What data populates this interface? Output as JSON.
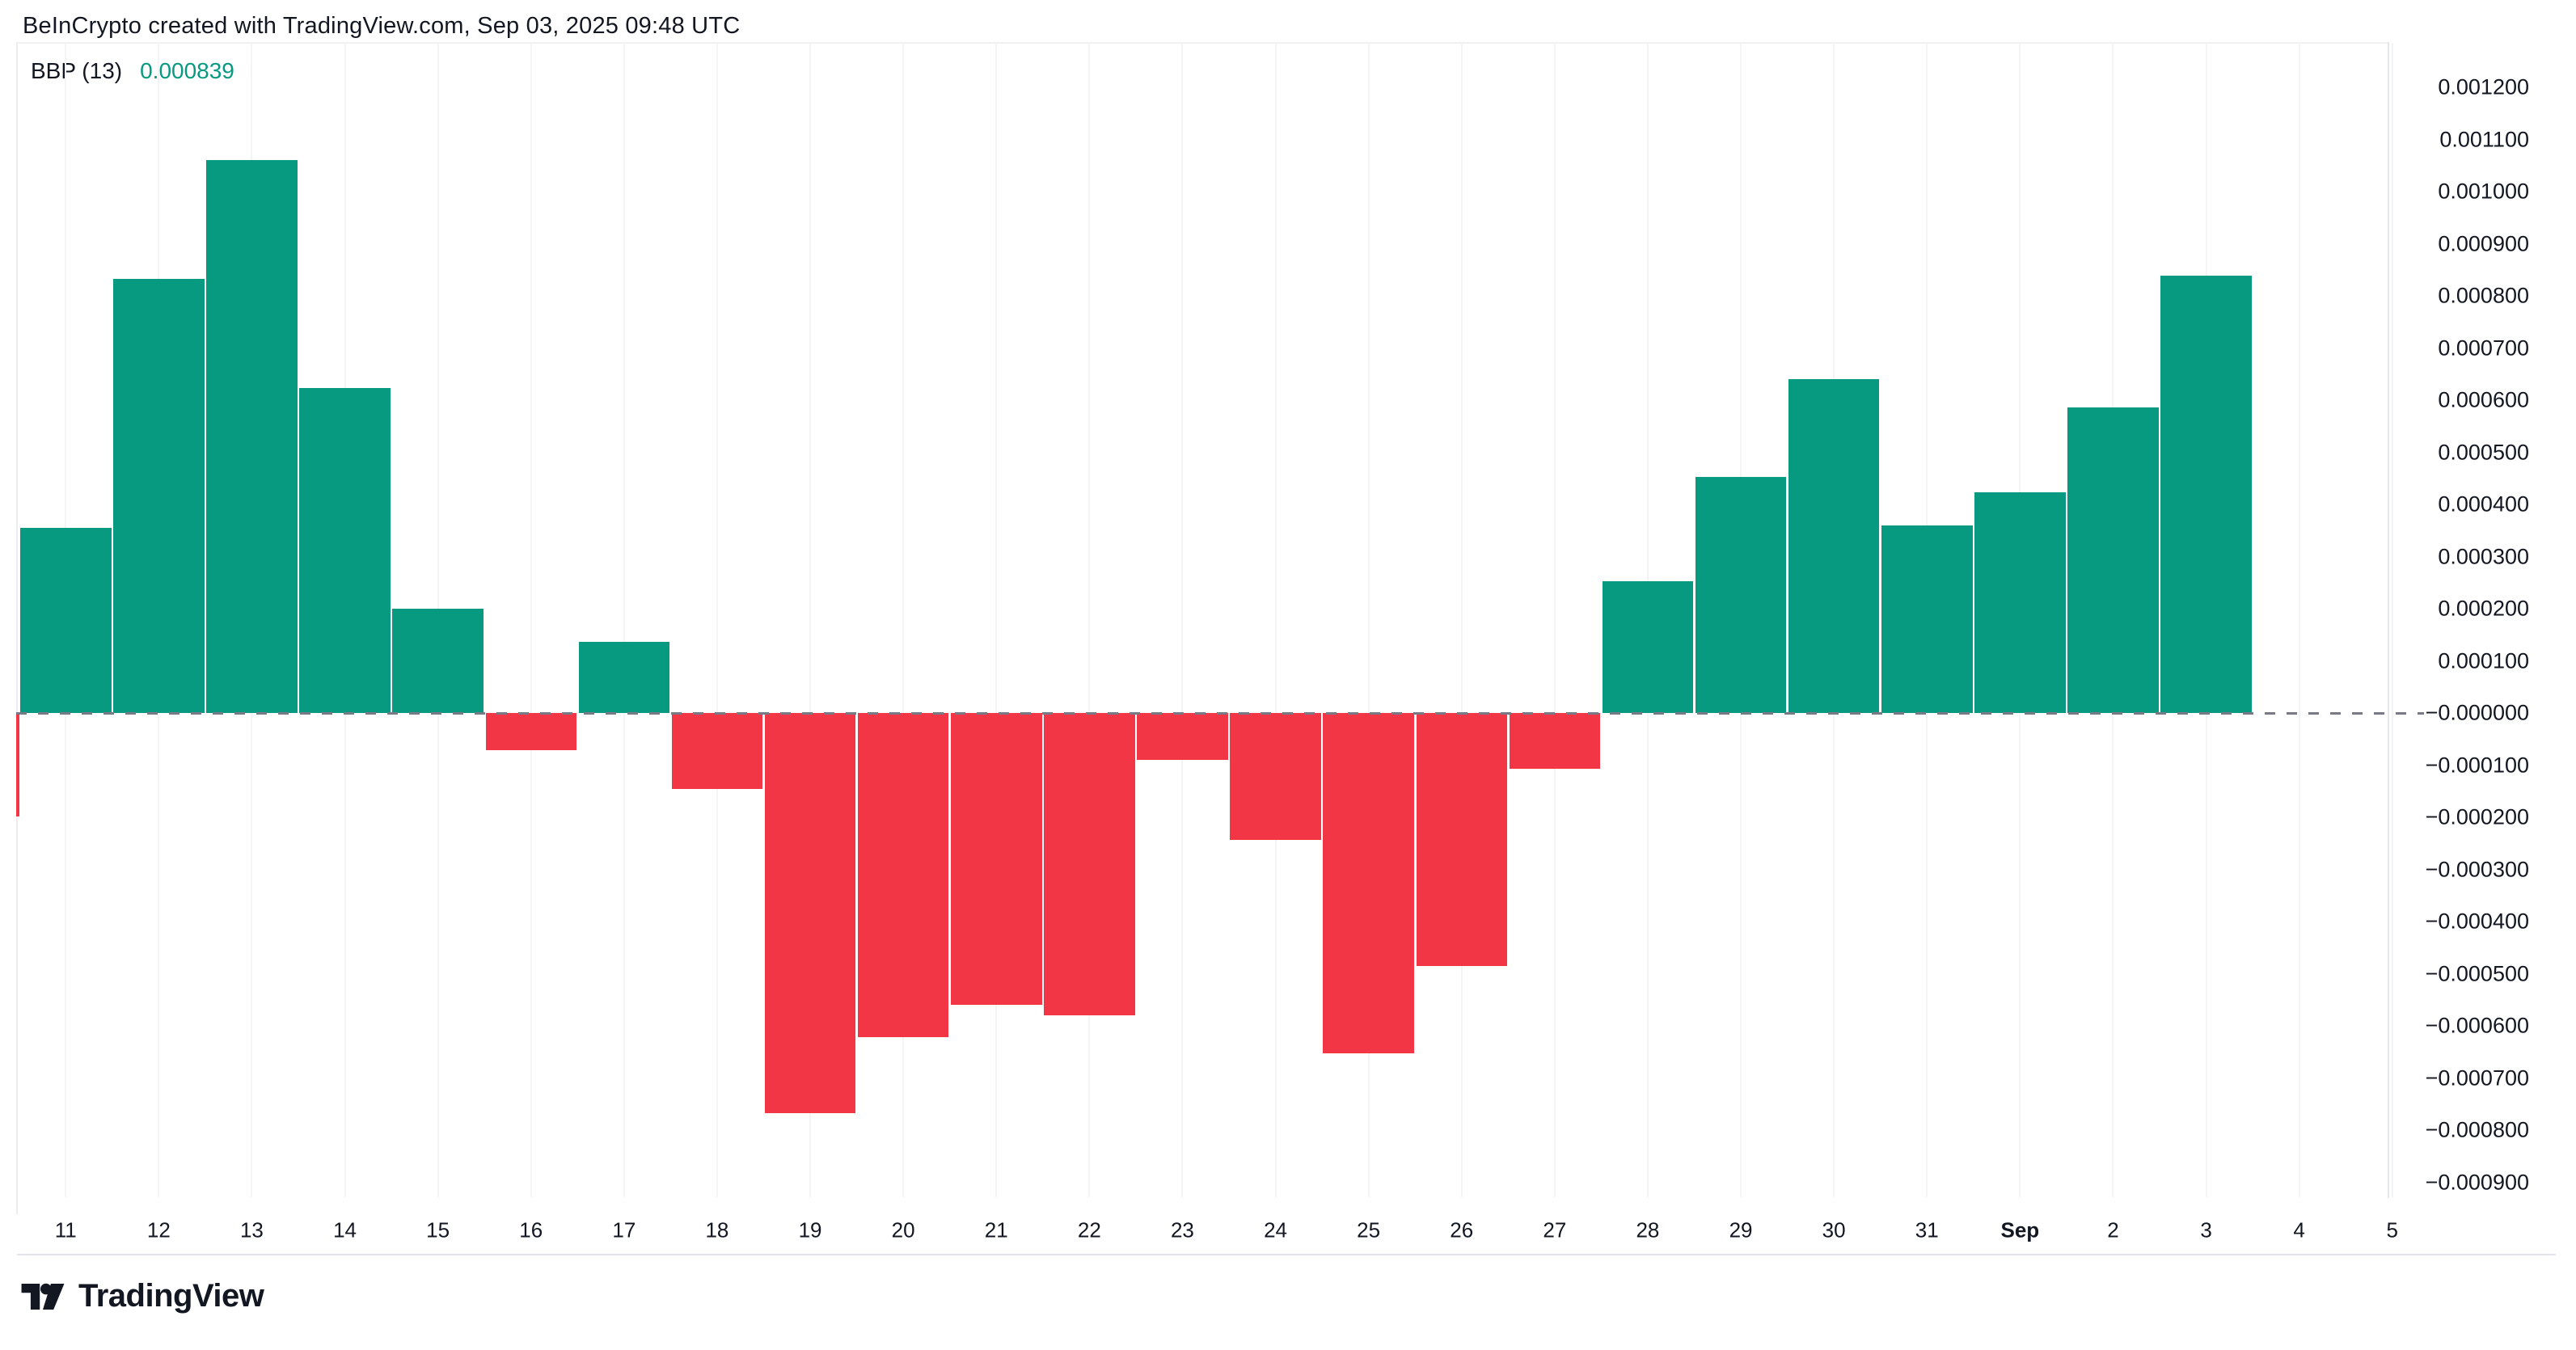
{
  "header": {
    "title": "BeInCrypto created with TradingView.com, Sep 03, 2025 09:48 UTC"
  },
  "legend": {
    "indicator_label": "BBP (13)",
    "indicator_value": "0.000839"
  },
  "footer": {
    "brand": "TradingView"
  },
  "colors": {
    "positive": "#089981",
    "negative": "#F23645",
    "text": "#131722",
    "zero_line": "#787b86",
    "grid": "#f3f4f8",
    "border": "#e6e8ee"
  },
  "chart_data": {
    "type": "bar",
    "title": "BBP (13)",
    "current_value": 0.000839,
    "categories": [
      "11",
      "12",
      "13",
      "14",
      "15",
      "16",
      "17",
      "18",
      "19",
      "20",
      "21",
      "22",
      "23",
      "24",
      "25",
      "26",
      "27",
      "28",
      "29",
      "30",
      "31",
      "Sep",
      "2",
      "3",
      "4",
      "5"
    ],
    "values": [
      0.000355,
      0.000833,
      0.00106,
      0.000623,
      0.0002,
      -7.2e-05,
      0.000136,
      -0.000146,
      -0.000767,
      -0.000622,
      -0.000559,
      -0.00058,
      -9e-05,
      -0.000244,
      -0.000652,
      -0.000486,
      -0.000107,
      0.000252,
      0.000452,
      0.000641,
      0.00036,
      0.000424,
      0.000586,
      0.000839,
      null,
      null
    ],
    "bold_category": "Sep",
    "partial_left_bar_value": -0.000199,
    "y_tick_labels": [
      "0.001200",
      "0.001100",
      "0.001000",
      "0.000900",
      "0.000800",
      "0.000700",
      "0.000600",
      "0.000500",
      "0.000400",
      "0.000300",
      "0.000200",
      "0.000100",
      "−0.000000",
      "−0.000100",
      "−0.000200",
      "−0.000300",
      "−0.000400",
      "−0.000500",
      "−0.000600",
      "−0.000700",
      "−0.000800",
      "−0.000900"
    ],
    "y_tick_values": [
      0.0012,
      0.0011,
      0.001,
      0.0009,
      0.0008,
      0.0007,
      0.0006,
      0.0005,
      0.0004,
      0.0003,
      0.0002,
      0.0001,
      0.0,
      -0.0001,
      -0.0002,
      -0.0003,
      -0.0004,
      -0.0005,
      -0.0006,
      -0.0007,
      -0.0008,
      -0.0009
    ],
    "ylim": [
      -0.00095,
      0.00125
    ],
    "grid": "faint-vertical",
    "legend_position": "top-left",
    "zero_line_style": "dashed"
  }
}
